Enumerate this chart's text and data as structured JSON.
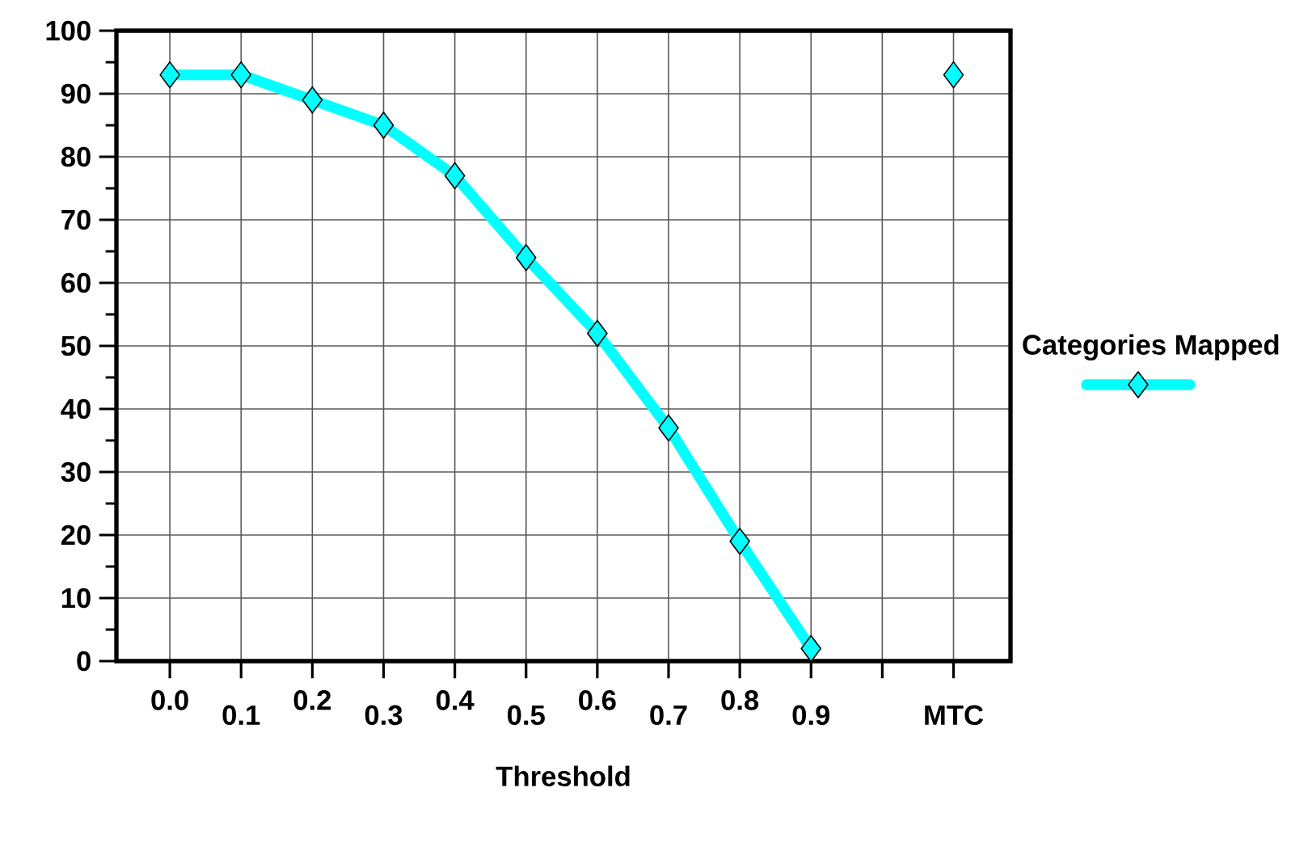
{
  "chart_data": {
    "type": "line",
    "xlabel": "Threshold",
    "categories": [
      "0.0",
      "0.1",
      "0.2",
      "0.3",
      "0.4",
      "0.5",
      "0.6",
      "0.7",
      "0.8",
      "0.9",
      null,
      "MTC"
    ],
    "series": [
      {
        "name": "Categories Mapped",
        "color": "#00ffff",
        "values": [
          93,
          93,
          89,
          85,
          77,
          64,
          52,
          37,
          19,
          2,
          null,
          93
        ]
      }
    ],
    "ylim": [
      0,
      100
    ],
    "yticks": [
      0,
      10,
      20,
      30,
      40,
      50,
      60,
      70,
      80,
      90,
      100
    ],
    "grid": true,
    "legend": "right",
    "marker": "diamond",
    "line_style": "solid"
  }
}
